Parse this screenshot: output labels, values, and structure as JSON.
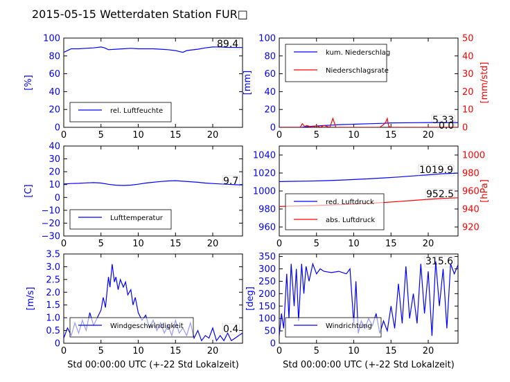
{
  "title": "2015-05-15 Wetterdaten Station FUR□",
  "colors": {
    "primary": "#0000ff",
    "secondary": "#ff0000",
    "axis": "#000000"
  },
  "chart_data": [
    {
      "type": "line",
      "id": "humidity",
      "ylabel": "[%]",
      "xlabel": "",
      "xlim": [
        0,
        24
      ],
      "ylim": [
        0,
        100
      ],
      "xticks": [
        0,
        5,
        10,
        15,
        20
      ],
      "yticks": [
        0,
        20,
        40,
        60,
        80,
        100
      ],
      "current_value": "89.4",
      "legend_loc": "lower-left",
      "grid": false,
      "series": [
        {
          "name": "rel. Luftfeuchte",
          "axis": "left",
          "color": "#0000ff",
          "x": [
            0,
            0.5,
            1,
            2,
            3,
            4,
            5,
            5.5,
            6,
            7,
            8,
            9,
            10,
            11,
            12,
            13,
            14,
            15,
            15.5,
            16,
            16.5,
            17,
            18,
            19,
            20,
            21,
            22,
            23,
            24
          ],
          "y": [
            84,
            86,
            88,
            88,
            88.5,
            89,
            90,
            89,
            87,
            87.5,
            88,
            88.5,
            88,
            88,
            88,
            87.5,
            87,
            86,
            85,
            84,
            86,
            86.5,
            87.5,
            89,
            90,
            90,
            89.5,
            89.5,
            89.4
          ]
        }
      ]
    },
    {
      "type": "line",
      "id": "precipitation",
      "ylabel": "[mm]",
      "ylabel2": "[mm/std]",
      "xlabel": "",
      "xlim": [
        0,
        24
      ],
      "ylim": [
        0,
        100
      ],
      "ylim2": [
        0,
        50
      ],
      "xticks": [
        0,
        5,
        10,
        15,
        20
      ],
      "yticks": [
        0,
        20,
        40,
        60,
        80,
        100
      ],
      "yticks2": [
        0,
        10,
        20,
        30,
        40,
        50
      ],
      "current_value": "5.33",
      "current_value2": "0.0",
      "legend_loc": "upper-left",
      "grid": false,
      "series": [
        {
          "name": "kum. Niederschlag",
          "axis": "left",
          "color": "#0000ff",
          "x": [
            0,
            3,
            4,
            6,
            7,
            8,
            10,
            12,
            14,
            15,
            18,
            20,
            24
          ],
          "y": [
            0,
            0,
            1,
            2,
            2.5,
            3,
            3.5,
            4,
            4.5,
            5,
            5.2,
            5.33,
            5.33
          ]
        },
        {
          "name": "Niederschlagsrate",
          "axis": "right",
          "color": "#ff0000",
          "x": [
            0,
            2.8,
            3.1,
            3.4,
            3.7,
            4.5,
            5,
            5.5,
            6,
            6.8,
            7.2,
            7.6,
            8,
            10,
            13.5,
            14,
            14.3,
            14.5,
            14.7,
            15,
            24
          ],
          "y": [
            0,
            0,
            2,
            0.5,
            1,
            0,
            1,
            0,
            1,
            0,
            5,
            0,
            0,
            0,
            0,
            1.5,
            3,
            5,
            0.5,
            0,
            0
          ]
        }
      ]
    },
    {
      "type": "line",
      "id": "temperature",
      "ylabel": "[C]",
      "xlabel": "",
      "xlim": [
        0,
        24
      ],
      "ylim": [
        -30,
        40
      ],
      "xticks": [
        0,
        5,
        10,
        15,
        20
      ],
      "yticks": [
        -30,
        -20,
        -10,
        0,
        10,
        20,
        30,
        40
      ],
      "current_value": "9.7",
      "legend_loc": "lower-left",
      "grid": false,
      "series": [
        {
          "name": "Lufttemperatur",
          "axis": "left",
          "color": "#0000ff",
          "x": [
            0,
            1,
            2,
            3,
            4,
            5,
            6,
            7,
            8,
            9,
            10,
            11,
            12,
            13,
            14,
            15,
            16,
            17,
            18,
            19,
            20,
            21,
            22,
            23,
            24
          ],
          "y": [
            10.5,
            10.8,
            11,
            11.3,
            11.5,
            11.2,
            10.2,
            9.5,
            9.3,
            9.6,
            10.3,
            11.2,
            11.8,
            12.4,
            12.8,
            13,
            12.6,
            12.2,
            11.8,
            11.2,
            10.8,
            10.5,
            10.2,
            9.9,
            9.7
          ]
        }
      ]
    },
    {
      "type": "line",
      "id": "pressure",
      "ylabel": "",
      "ylabel2": "[hPa]",
      "xlabel": "",
      "xlim": [
        0,
        24
      ],
      "ylim": [
        950,
        1050
      ],
      "ylim2": [
        910,
        1010
      ],
      "xticks": [
        0,
        5,
        10,
        15,
        20
      ],
      "yticks": [
        960,
        980,
        1000,
        1020,
        1040
      ],
      "yticks2": [
        920,
        940,
        960,
        980,
        1000
      ],
      "current_value": "1019.9",
      "current_value2": "952.5",
      "legend_loc": "lower-left",
      "grid": false,
      "series": [
        {
          "name": "red. Luftdruck",
          "axis": "left",
          "color": "#0000ff",
          "x": [
            0,
            2,
            4,
            6,
            8,
            10,
            12,
            14,
            16,
            18,
            20,
            22,
            24
          ],
          "y": [
            1010.5,
            1010.8,
            1011,
            1011.5,
            1012,
            1012.8,
            1013.5,
            1014.5,
            1015.5,
            1016.8,
            1018,
            1019.2,
            1019.9
          ]
        },
        {
          "name": "abs. Luftdruck",
          "axis": "right",
          "color": "#ff0000",
          "x": [
            0,
            2,
            4,
            6,
            8,
            10,
            12,
            14,
            16,
            18,
            20,
            22,
            24
          ],
          "y": [
            942.8,
            943.2,
            943.6,
            944.2,
            944.8,
            945.5,
            946.3,
            947.2,
            948.3,
            949.5,
            950.8,
            951.8,
            952.5
          ]
        }
      ]
    },
    {
      "type": "line",
      "id": "wind_speed",
      "ylabel": "[m/s]",
      "xlabel": "Std 00:00:00 UTC (+-22 Std Lokalzeit)",
      "xlim": [
        0,
        24
      ],
      "ylim": [
        0,
        3.5
      ],
      "xticks": [
        0,
        5,
        10,
        15,
        20
      ],
      "yticks": [
        0,
        0.5,
        1.0,
        1.5,
        2.0,
        2.5,
        3.0,
        3.5
      ],
      "current_value": "0.4",
      "legend_loc": "lower-left",
      "grid": false,
      "series": [
        {
          "name": "Windgeschwindigkeit",
          "axis": "left",
          "color": "#0000ff",
          "x": [
            0,
            0.5,
            1,
            1.5,
            2,
            2.5,
            3,
            3.5,
            4,
            4.5,
            5,
            5.3,
            5.6,
            6,
            6.2,
            6.5,
            6.8,
            7,
            7.3,
            7.6,
            8,
            8.3,
            8.6,
            9,
            9.3,
            9.6,
            10,
            10.5,
            11,
            11.5,
            12,
            12.5,
            13,
            13.5,
            14,
            14.5,
            15,
            15.5,
            16,
            16.5,
            17,
            17.5,
            18,
            18.5,
            19,
            19.5,
            20,
            20.5,
            21,
            21.5,
            22,
            22.5,
            23,
            23.5,
            24
          ],
          "y": [
            0.2,
            0.6,
            0.3,
            0.8,
            0.4,
            0.9,
            0.5,
            1.2,
            0.7,
            1.0,
            1.3,
            1.8,
            1.4,
            2.6,
            2.2,
            3.1,
            2.4,
            2.6,
            2.1,
            2.5,
            2.2,
            2.4,
            1.9,
            2.1,
            1.5,
            1.8,
            1.2,
            0.9,
            1.1,
            0.6,
            0.9,
            0.5,
            0.8,
            0.4,
            0.7,
            0.3,
            0.9,
            0.4,
            0.6,
            0.3,
            0.8,
            0.2,
            0.5,
            0.1,
            0.3,
            0.2,
            0.6,
            0.1,
            0.3,
            0.1,
            0.4,
            0.1,
            0.2,
            0.3,
            0.4
          ]
        }
      ]
    },
    {
      "type": "line",
      "id": "wind_direction",
      "ylabel": "[deg]",
      "xlabel": "Std 00:00:00 UTC (+-22 Std Lokalzeit)",
      "xlim": [
        0,
        24
      ],
      "ylim": [
        0,
        360
      ],
      "xticks": [
        0,
        5,
        10,
        15,
        20
      ],
      "yticks": [
        0,
        50,
        100,
        150,
        200,
        250,
        300,
        350
      ],
      "current_value": "315.6",
      "legend_loc": "lower-left",
      "grid": false,
      "series": [
        {
          "name": "Windrichtung",
          "axis": "left",
          "color": "#0000ff",
          "x": [
            0,
            0.3,
            0.6,
            1,
            1.3,
            1.6,
            2,
            2.3,
            2.6,
            3,
            3.3,
            3.6,
            4,
            4.5,
            5,
            5.5,
            6,
            7,
            8,
            9,
            9.5,
            10,
            10.3,
            10.6,
            11,
            11.5,
            12,
            12.5,
            13,
            13.5,
            14,
            14.5,
            15,
            15.5,
            16,
            16.5,
            17,
            17.5,
            18,
            18.5,
            19,
            19.5,
            20,
            20.5,
            21,
            21.5,
            22,
            22.5,
            23,
            23.5,
            24
          ],
          "y": [
            30,
            120,
            60,
            280,
            100,
            320,
            150,
            300,
            90,
            320,
            200,
            310,
            250,
            320,
            280,
            300,
            290,
            285,
            290,
            280,
            300,
            80,
            250,
            40,
            90,
            60,
            100,
            70,
            120,
            40,
            90,
            50,
            150,
            60,
            240,
            80,
            310,
            100,
            200,
            80,
            320,
            120,
            290,
            30,
            330,
            150,
            300,
            60,
            320,
            280,
            316
          ]
        }
      ]
    }
  ]
}
